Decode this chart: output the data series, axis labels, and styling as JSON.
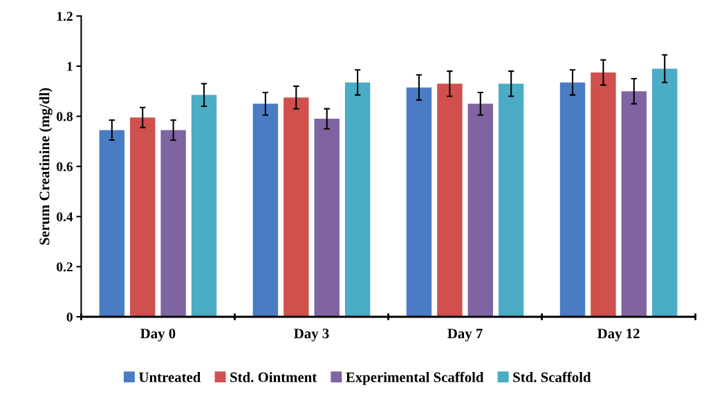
{
  "chart_data": {
    "type": "bar",
    "ylabel": "Serum Creatinine (mg/dl)",
    "categories": [
      "Day 0",
      "Day 3",
      "Day 7",
      "Day 12"
    ],
    "series": [
      {
        "name": "Untreated",
        "color": "#4a7cc4",
        "values": [
          0.745,
          0.85,
          0.915,
          0.935
        ],
        "errors": [
          0.04,
          0.045,
          0.05,
          0.05
        ]
      },
      {
        "name": "Std. Ointment",
        "color": "#d0504d",
        "values": [
          0.795,
          0.875,
          0.93,
          0.975
        ],
        "errors": [
          0.04,
          0.045,
          0.05,
          0.05
        ]
      },
      {
        "name": "Experimental Scaffold",
        "color": "#8064a2",
        "values": [
          0.745,
          0.79,
          0.85,
          0.9
        ],
        "errors": [
          0.04,
          0.04,
          0.045,
          0.05
        ]
      },
      {
        "name": "Std. Scaffold",
        "color": "#4bacc6",
        "values": [
          0.885,
          0.935,
          0.93,
          0.99
        ],
        "errors": [
          0.045,
          0.05,
          0.05,
          0.055
        ]
      }
    ],
    "ylim": [
      0,
      1.2
    ],
    "yticks": [
      0,
      0.2,
      0.4,
      0.6,
      0.8,
      1,
      1.2
    ],
    "grid": false,
    "legend": "bottom"
  }
}
